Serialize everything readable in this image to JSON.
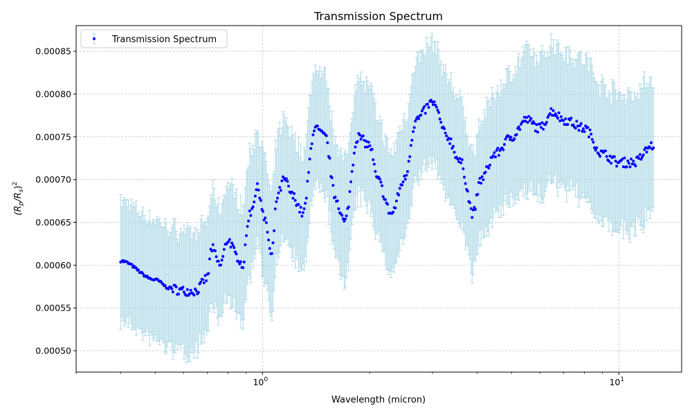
{
  "chart_data": {
    "type": "scatter",
    "title": "Transmission Spectrum",
    "xlabel": "Wavelength (micron)",
    "ylabel_base": "(R",
    "ylabel_sub1": "p",
    "ylabel_mid": "/R",
    "ylabel_sub2": "s",
    "ylabel_end": ")",
    "ylabel_sup": "2",
    "x_scale": "log",
    "xlim": [
      0.3,
      15
    ],
    "ylim": [
      0.000475,
      0.00088
    ],
    "grid": true,
    "legend_position": "upper-left",
    "x_major_ticks": [
      {
        "value": 1,
        "base": "10",
        "exp": "0"
      },
      {
        "value": 10,
        "base": "10",
        "exp": "1"
      }
    ],
    "y_ticks": [
      {
        "value": 0.0005,
        "label": "0.00050"
      },
      {
        "value": 0.00055,
        "label": "0.00055"
      },
      {
        "value": 0.0006,
        "label": "0.00060"
      },
      {
        "value": 0.00065,
        "label": "0.00065"
      },
      {
        "value": 0.0007,
        "label": "0.00070"
      },
      {
        "value": 0.00075,
        "label": "0.00075"
      },
      {
        "value": 0.0008,
        "label": "0.00080"
      },
      {
        "value": 0.00085,
        "label": "0.00085"
      }
    ],
    "series": [
      {
        "name": "Transmission Spectrum",
        "marker_color": "#0000ff",
        "errorbar_color": "#add8e6",
        "n_points": 480,
        "x_range": [
          0.4,
          12.5
        ],
        "trend_anchors": [
          [
            0.4,
            0.000605
          ],
          [
            0.5,
            0.000583
          ],
          [
            0.55,
            0.000573
          ],
          [
            0.6,
            0.00057
          ],
          [
            0.65,
            0.00057
          ],
          [
            0.7,
            0.000585
          ],
          [
            0.72,
            0.00062
          ],
          [
            0.76,
            0.0006
          ],
          [
            0.8,
            0.00063
          ],
          [
            0.85,
            0.00061
          ],
          [
            0.88,
            0.0006
          ],
          [
            0.92,
            0.00066
          ],
          [
            0.97,
            0.00069
          ],
          [
            1.02,
            0.00065
          ],
          [
            1.06,
            0.00061
          ],
          [
            1.1,
            0.00068
          ],
          [
            1.15,
            0.0007
          ],
          [
            1.22,
            0.00068
          ],
          [
            1.3,
            0.00066
          ],
          [
            1.4,
            0.00076
          ],
          [
            1.5,
            0.00075
          ],
          [
            1.6,
            0.00068
          ],
          [
            1.7,
            0.00065
          ],
          [
            1.85,
            0.00075
          ],
          [
            2.0,
            0.00074
          ],
          [
            2.1,
            0.0007
          ],
          [
            2.3,
            0.00066
          ],
          [
            2.5,
            0.0007
          ],
          [
            2.7,
            0.00077
          ],
          [
            3.0,
            0.00079
          ],
          [
            3.3,
            0.00075
          ],
          [
            3.6,
            0.00072
          ],
          [
            3.9,
            0.00066
          ],
          [
            4.1,
            0.0007
          ],
          [
            4.5,
            0.00073
          ],
          [
            5.0,
            0.00075
          ],
          [
            5.5,
            0.00077
          ],
          [
            6.0,
            0.00076
          ],
          [
            6.5,
            0.00078
          ],
          [
            7.0,
            0.00077
          ],
          [
            8.0,
            0.00076
          ],
          [
            9.0,
            0.00073
          ],
          [
            10.0,
            0.00072
          ],
          [
            11.0,
            0.00072
          ],
          [
            12.5,
            0.00074
          ]
        ],
        "error_anchors": [
          [
            0.4,
            7e-05
          ],
          [
            0.6,
            7e-05
          ],
          [
            0.7,
            6.5e-05
          ],
          [
            1.0,
            7e-05
          ],
          [
            1.4,
            7e-05
          ],
          [
            2.0,
            7e-05
          ],
          [
            3.0,
            7e-05
          ],
          [
            4.0,
            7e-05
          ],
          [
            6.0,
            8e-05
          ],
          [
            10.0,
            8e-05
          ],
          [
            12.5,
            8e-05
          ]
        ]
      }
    ]
  }
}
